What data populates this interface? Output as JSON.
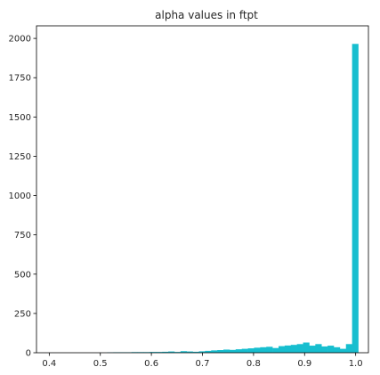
{
  "chart_data": {
    "type": "bar",
    "title": "alpha values in ftpt",
    "xlabel": "",
    "ylabel": "",
    "xlim": [
      0.375,
      1.025
    ],
    "ylim": [
      0,
      2080
    ],
    "xticks": [
      0.4,
      0.5,
      0.6,
      0.7,
      0.8,
      0.9,
      1.0
    ],
    "xtick_labels": [
      "0.4",
      "0.5",
      "0.6",
      "0.7",
      "0.8",
      "0.9",
      "1.0"
    ],
    "yticks": [
      0,
      250,
      500,
      750,
      1000,
      1250,
      1500,
      1750,
      2000
    ],
    "ytick_labels": [
      "0",
      "250",
      "500",
      "750",
      "1000",
      "1250",
      "1500",
      "1750",
      "2000"
    ],
    "bin_edges": [
      0.405,
      0.417,
      0.429,
      0.441,
      0.453,
      0.465,
      0.477,
      0.489,
      0.501,
      0.513,
      0.525,
      0.537,
      0.549,
      0.561,
      0.573,
      0.585,
      0.597,
      0.609,
      0.621,
      0.633,
      0.645,
      0.657,
      0.669,
      0.681,
      0.693,
      0.705,
      0.717,
      0.729,
      0.741,
      0.753,
      0.765,
      0.777,
      0.789,
      0.801,
      0.813,
      0.825,
      0.837,
      0.849,
      0.861,
      0.873,
      0.885,
      0.897,
      0.909,
      0.921,
      0.933,
      0.945,
      0.957,
      0.969,
      0.981,
      0.993,
      1.005
    ],
    "values": [
      0,
      0,
      0,
      0,
      0,
      0,
      0,
      0,
      0,
      2,
      3,
      3,
      3,
      4,
      4,
      4,
      5,
      5,
      6,
      8,
      5,
      10,
      8,
      6,
      9,
      12,
      15,
      17,
      20,
      18,
      22,
      25,
      28,
      32,
      35,
      38,
      30,
      42,
      46,
      50,
      55,
      65,
      45,
      55,
      40,
      45,
      35,
      25,
      55,
      1965
    ],
    "bar_color": "#17becf",
    "grid": false,
    "legend": "none"
  }
}
